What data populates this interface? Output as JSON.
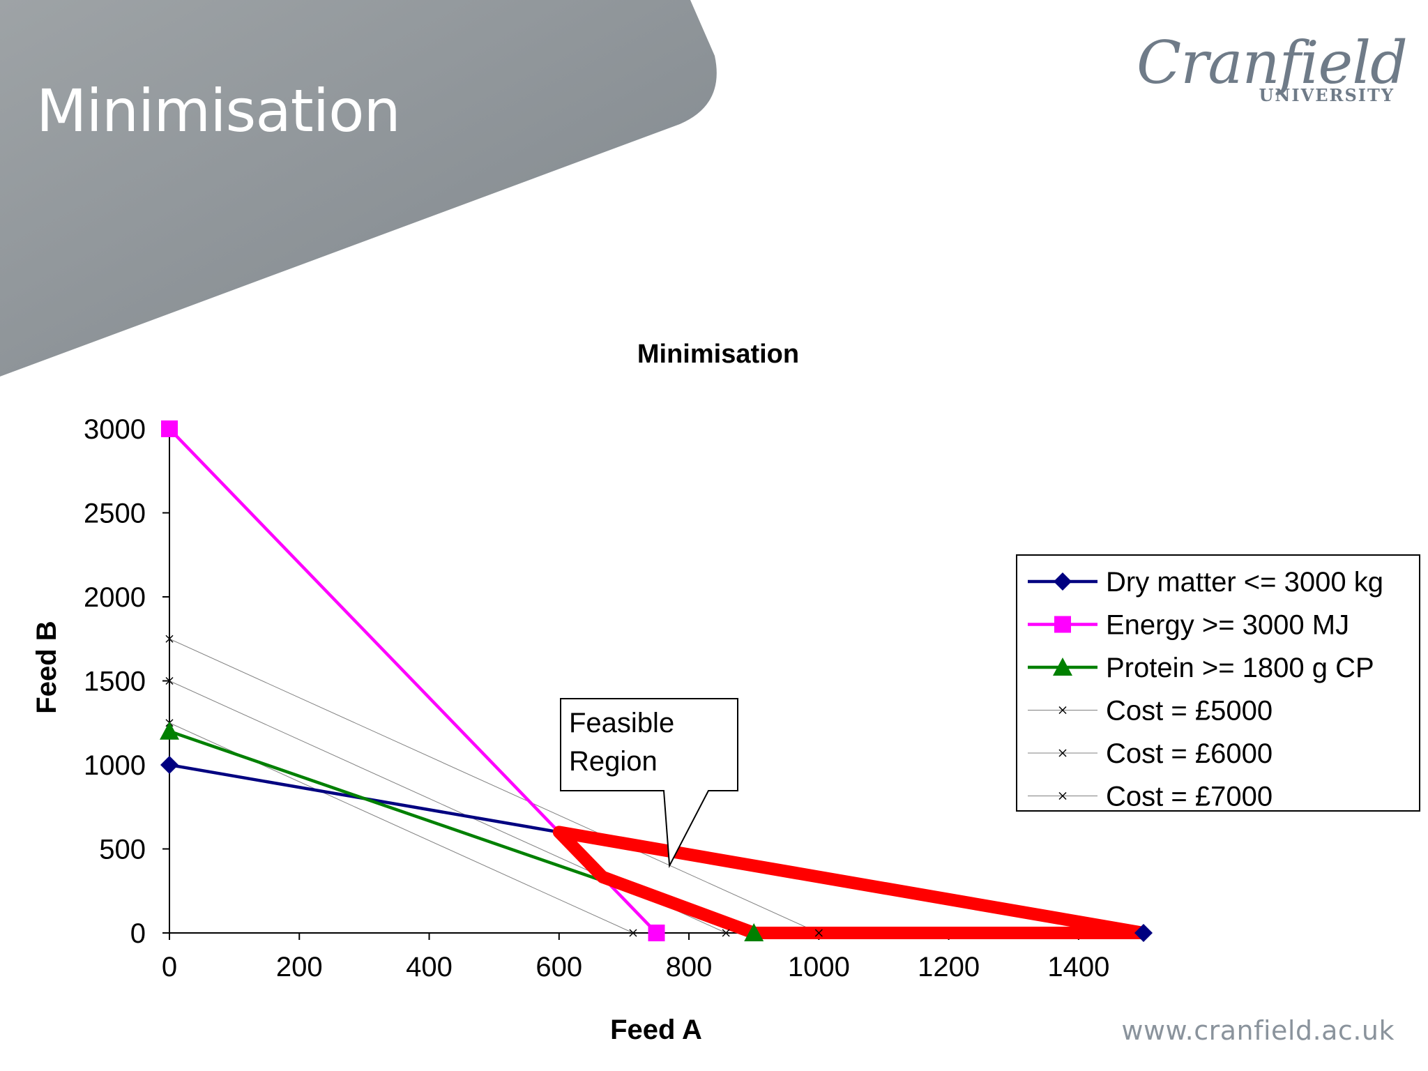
{
  "slide": {
    "title": "Minimisation",
    "logo_main": "Cranfield",
    "logo_sub": "UNIVERSITY",
    "website": "www.cranfield.ac.uk"
  },
  "colors": {
    "banner": "#8e9499",
    "dry_matter": "#000080",
    "energy": "#ff00ff",
    "protein": "#008000",
    "cost": "#808080",
    "feasible": "#ff0000"
  },
  "chart_data": {
    "type": "line",
    "title": "Minimisation",
    "xlabel": "Feed A",
    "ylabel": "Feed B",
    "xlim": [
      0,
      1500
    ],
    "ylim": [
      0,
      3000
    ],
    "xticks": [
      0,
      200,
      400,
      600,
      800,
      1000,
      1200,
      1400
    ],
    "yticks": [
      0,
      500,
      1000,
      1500,
      2000,
      2500,
      3000
    ],
    "legend_position": "right",
    "series": [
      {
        "name": "Dry matter <= 3000 kg",
        "marker": "diamond",
        "x": [
          0,
          1500
        ],
        "y": [
          1000,
          0
        ]
      },
      {
        "name": "Energy >= 3000 MJ",
        "marker": "square",
        "x": [
          0,
          750
        ],
        "y": [
          3000,
          0
        ]
      },
      {
        "name": "Protein >= 1800 g CP",
        "marker": "triangle",
        "x": [
          0,
          900
        ],
        "y": [
          1200,
          0
        ]
      },
      {
        "name": "Cost = £5000",
        "marker": "x",
        "x": [
          0,
          714
        ],
        "y": [
          1250,
          0
        ]
      },
      {
        "name": "Cost = £6000",
        "marker": "x",
        "x": [
          0,
          857
        ],
        "y": [
          1500,
          0
        ]
      },
      {
        "name": "Cost = £7000",
        "marker": "x",
        "x": [
          0,
          1000
        ],
        "y": [
          1750,
          0
        ]
      }
    ],
    "feasible_region": {
      "x": [
        600,
        667,
        900,
        1500,
        600
      ],
      "y": [
        600,
        333,
        0,
        0,
        600
      ]
    },
    "annotation": {
      "lines": [
        "Feasible",
        "Region"
      ],
      "target": {
        "x": 770,
        "y": 400
      }
    }
  }
}
